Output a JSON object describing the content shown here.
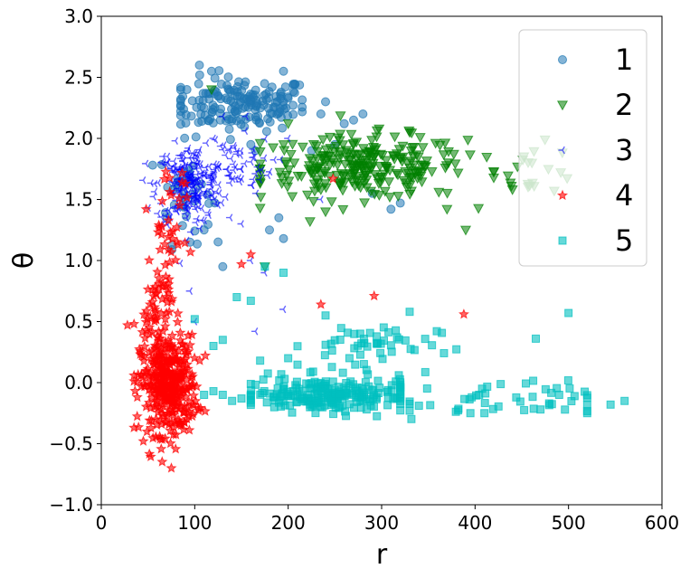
{
  "chart_data": {
    "type": "scatter",
    "xlabel": "r",
    "ylabel": "θ",
    "xlim": [
      0,
      600
    ],
    "ylim": [
      -1.0,
      3.0
    ],
    "xticks": [
      "0",
      "100",
      "200",
      "300",
      "400",
      "500",
      "600"
    ],
    "yticks": [
      "−1.0",
      "−0.5",
      "0.0",
      "0.5",
      "1.0",
      "1.5",
      "2.0",
      "2.5",
      "3.0"
    ],
    "grid": false,
    "legend_position": "top-right",
    "series": [
      {
        "name": "1",
        "marker": "circle",
        "color": "#1f77b4",
        "clusters": [
          {
            "cx": 150,
            "cy": 2.28,
            "sx": 38,
            "sy": 0.11,
            "n": 170,
            "xrange": [
              85,
              215
            ]
          },
          {
            "cx": 90,
            "cy": 1.55,
            "sx": 14,
            "sy": 0.2,
            "n": 40,
            "xrange": [
              55,
              125
            ]
          }
        ],
        "points": [
          [
            105,
            2.6
          ],
          [
            118,
            2.55
          ],
          [
            195,
            2.55
          ],
          [
            200,
            2.33
          ],
          [
            235,
            2.2
          ],
          [
            240,
            2.3
          ],
          [
            260,
            2.12
          ],
          [
            270,
            2.15
          ],
          [
            280,
            2.2
          ],
          [
            250,
            1.95
          ],
          [
            225,
            1.9
          ],
          [
            160,
            1.95
          ],
          [
            165,
            1.9
          ],
          [
            290,
            1.55
          ],
          [
            310,
            1.42
          ],
          [
            320,
            1.47
          ],
          [
            190,
            1.35
          ],
          [
            180,
            1.25
          ],
          [
            195,
            1.18
          ],
          [
            130,
            0.95
          ],
          [
            110,
            1.25
          ],
          [
            95,
            1.15
          ]
        ]
      },
      {
        "name": "2",
        "marker": "triangle-down",
        "color": "#008000",
        "clusters": [
          {
            "cx": 280,
            "cy": 1.76,
            "sx": 55,
            "sy": 0.13,
            "n": 260,
            "xrange": [
              170,
              420
            ]
          },
          {
            "cx": 460,
            "cy": 1.75,
            "sx": 25,
            "sy": 0.1,
            "n": 22,
            "xrange": [
              420,
              500
            ]
          }
        ],
        "points": [
          [
            118,
            2.4
          ],
          [
            200,
            2.12
          ],
          [
            170,
            1.96
          ],
          [
            175,
            0.95
          ],
          [
            240,
            1.4
          ],
          [
            235,
            1.58
          ],
          [
            390,
            1.25
          ],
          [
            440,
            1.58
          ],
          [
            370,
            1.42
          ],
          [
            330,
            2.05
          ]
        ]
      },
      {
        "name": "3",
        "marker": "tri-left",
        "color": "#0000ff",
        "clusters": [
          {
            "cx": 95,
            "cy": 1.62,
            "sx": 18,
            "sy": 0.16,
            "n": 230,
            "xrange": [
              45,
              150
            ]
          },
          {
            "cx": 140,
            "cy": 1.78,
            "sx": 22,
            "sy": 0.12,
            "n": 55,
            "xrange": [
              100,
              195
            ]
          }
        ],
        "points": [
          [
            120,
            2.0
          ],
          [
            130,
            2.18
          ],
          [
            155,
            2.18
          ],
          [
            200,
            2.0
          ],
          [
            150,
            1.3
          ],
          [
            160,
            1.0
          ],
          [
            175,
            0.9
          ],
          [
            95,
            0.75
          ],
          [
            195,
            0.6
          ],
          [
            100,
            0.5
          ],
          [
            165,
            0.42
          ],
          [
            235,
            1.5
          ]
        ]
      },
      {
        "name": "4",
        "marker": "star",
        "color": "#ff0000",
        "clusters": [
          {
            "cx": 72,
            "cy": -0.02,
            "sx": 15,
            "sy": 0.2,
            "n": 380,
            "xrange": [
              35,
              125
            ]
          },
          {
            "cx": 60,
            "cy": 0.62,
            "sx": 8,
            "sy": 0.17,
            "n": 50,
            "xrange": [
              40,
              95
            ]
          },
          {
            "cx": 72,
            "cy": 1.12,
            "sx": 10,
            "sy": 0.15,
            "n": 25,
            "xrange": [
              50,
              100
            ]
          },
          {
            "cx": 75,
            "cy": 1.6,
            "sx": 10,
            "sy": 0.12,
            "n": 10,
            "xrange": [
              60,
              100
            ]
          }
        ],
        "points": [
          [
            28,
            0.47
          ],
          [
            35,
            0.48
          ],
          [
            45,
            -0.48
          ],
          [
            75,
            -0.7
          ],
          [
            48,
            1.42
          ],
          [
            90,
            1.63
          ],
          [
            150,
            0.97
          ],
          [
            160,
            1.05
          ],
          [
            235,
            0.64
          ],
          [
            292,
            0.71
          ],
          [
            388,
            0.56
          ],
          [
            248,
            1.67
          ]
        ]
      },
      {
        "name": "5",
        "marker": "square",
        "color": "#00bfbf",
        "clusters": [
          {
            "cx": 245,
            "cy": -0.1,
            "sx": 45,
            "sy": 0.07,
            "n": 220,
            "xrange": [
              160,
              320
            ]
          },
          {
            "cx": 280,
            "cy": 0.3,
            "sx": 40,
            "sy": 0.1,
            "n": 50,
            "xrange": [
              210,
              380
            ]
          },
          {
            "cx": 420,
            "cy": -0.15,
            "sx": 60,
            "sy": 0.08,
            "n": 45,
            "xrange": [
              330,
              520
            ]
          }
        ],
        "points": [
          [
            120,
            -0.07
          ],
          [
            110,
            -0.1
          ],
          [
            130,
            -0.1
          ],
          [
            150,
            -0.13
          ],
          [
            140,
            -0.15
          ],
          [
            175,
            0.95
          ],
          [
            195,
            0.9
          ],
          [
            145,
            0.7
          ],
          [
            160,
            0.67
          ],
          [
            100,
            0.52
          ],
          [
            240,
            0.55
          ],
          [
            330,
            0.58
          ],
          [
            500,
            0.57
          ],
          [
            465,
            0.36
          ],
          [
            545,
            -0.18
          ],
          [
            560,
            -0.15
          ],
          [
            520,
            -0.25
          ],
          [
            470,
            -0.22
          ],
          [
            490,
            -0.1
          ],
          [
            410,
            -0.25
          ],
          [
            395,
            -0.25
          ],
          [
            170,
            0.18
          ],
          [
            200,
            0.2
          ],
          [
            130,
            0.35
          ],
          [
            120,
            0.3
          ]
        ]
      }
    ]
  }
}
